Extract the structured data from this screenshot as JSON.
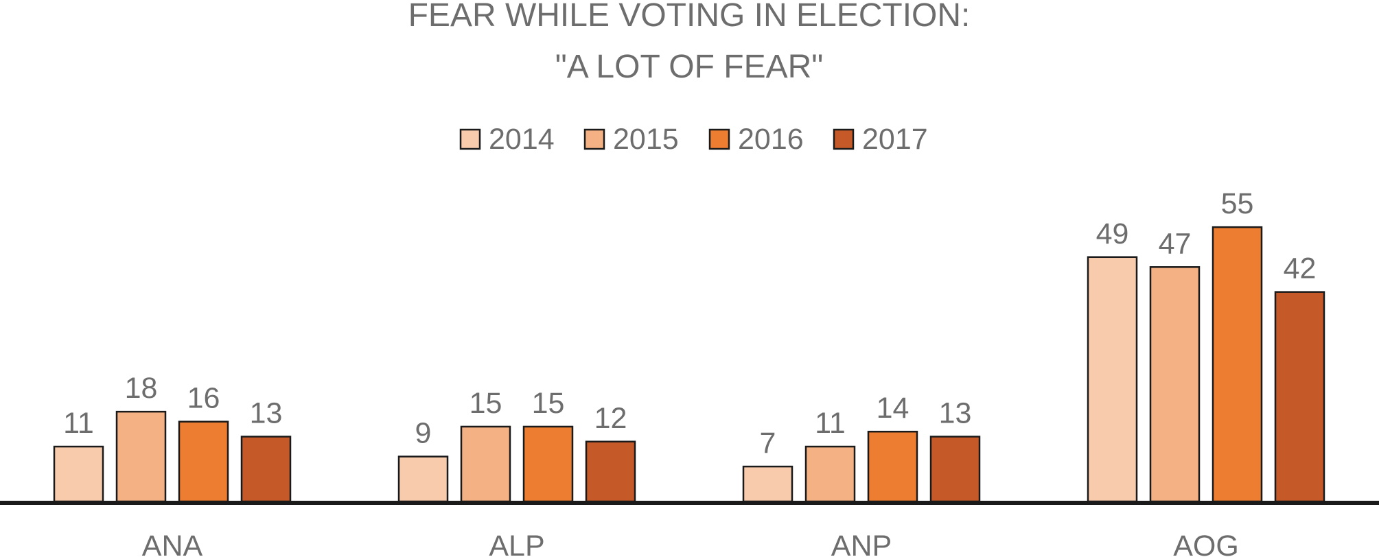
{
  "chart_data": {
    "type": "bar",
    "title": "FEAR WHILE VOTING IN ELECTION:",
    "subtitle": "\"A LOT OF FEAR\"",
    "categories": [
      "ANA",
      "ALP",
      "ANP",
      "AOG"
    ],
    "series": [
      {
        "name": "2014",
        "color": "#f8cbad",
        "values": [
          11,
          9,
          7,
          49
        ]
      },
      {
        "name": "2015",
        "color": "#f4b183",
        "values": [
          18,
          15,
          11,
          47
        ]
      },
      {
        "name": "2016",
        "color": "#ed7d31",
        "values": [
          16,
          15,
          14,
          55
        ]
      },
      {
        "name": "2017",
        "color": "#c55a28",
        "values": [
          13,
          12,
          13,
          42
        ]
      }
    ],
    "xlabel": "",
    "ylabel": "",
    "ylim": [
      0,
      55
    ],
    "legend_position": "top-center",
    "data_labels": true,
    "grid": false,
    "text_color": "#6d6d6d",
    "axis_color": "#1a1a1a"
  }
}
